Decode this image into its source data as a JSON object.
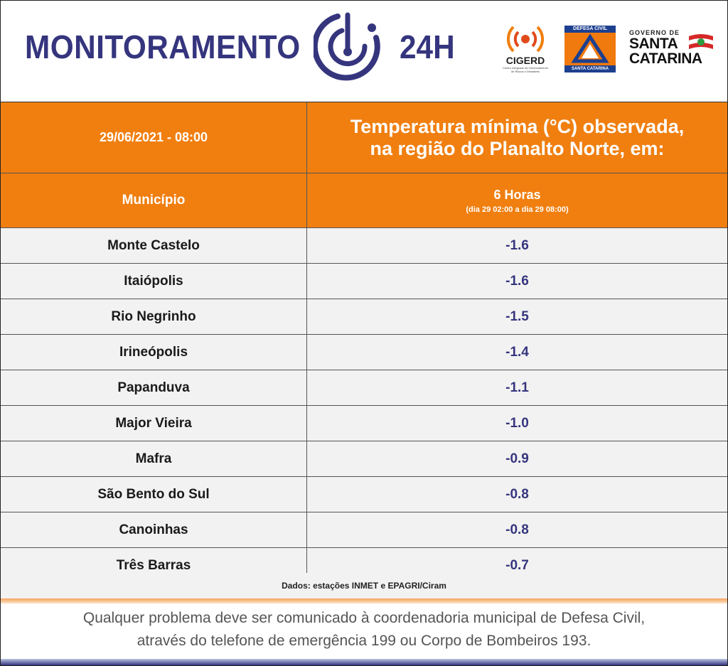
{
  "header": {
    "title_left": "MONITORAMENTO",
    "title_right": "24H",
    "radar_icon": "radar-icon",
    "logos": {
      "cigerd_name": "CIGERD",
      "cigerd_subtitle": "Centro Integrado de Gerenciamento de Riscos e Desastres",
      "defesa_top": "DEFESA CIVIL",
      "defesa_bottom": "SANTA CATARINA",
      "gov_small": "GOVERNO DE",
      "gov_line1": "SANTA",
      "gov_line2": "CATARINA"
    },
    "colors": {
      "title": "#35357e",
      "orange": "#f07f10"
    }
  },
  "table": {
    "date_time": "29/06/2021 - 08:00",
    "title_line1": "Temperatura mínima (°C) observada,",
    "title_line2": "na região do Planalto Norte, em:",
    "col_municipio": "Município",
    "col_hours": "6 Horas",
    "col_hours_range": "(dia 29 02:00 a dia 29 08:00)",
    "rows": [
      {
        "municipio": "Monte Castelo",
        "value": "-1.6"
      },
      {
        "municipio": "Itaiópolis",
        "value": "-1.6"
      },
      {
        "municipio": "Rio Negrinho",
        "value": "-1.5"
      },
      {
        "municipio": "Irineópolis",
        "value": "-1.4"
      },
      {
        "municipio": "Papanduva",
        "value": "-1.1"
      },
      {
        "municipio": "Major Vieira",
        "value": "-1.0"
      },
      {
        "municipio": "Mafra",
        "value": "-0.9"
      },
      {
        "municipio": "São Bento do Sul",
        "value": "-0.8"
      },
      {
        "municipio": "Canoinhas",
        "value": "-0.8"
      },
      {
        "municipio": "Três Barras",
        "value": "-0.7"
      }
    ]
  },
  "source": "Dados: estações INMET e EPAGRI/Ciram",
  "footer": {
    "line1": "Qualquer problema deve ser comunicado à coordenadoria municipal de Defesa Civil,",
    "line2": "através do telefone de emergência 199 ou Corpo de Bombeiros 193."
  }
}
